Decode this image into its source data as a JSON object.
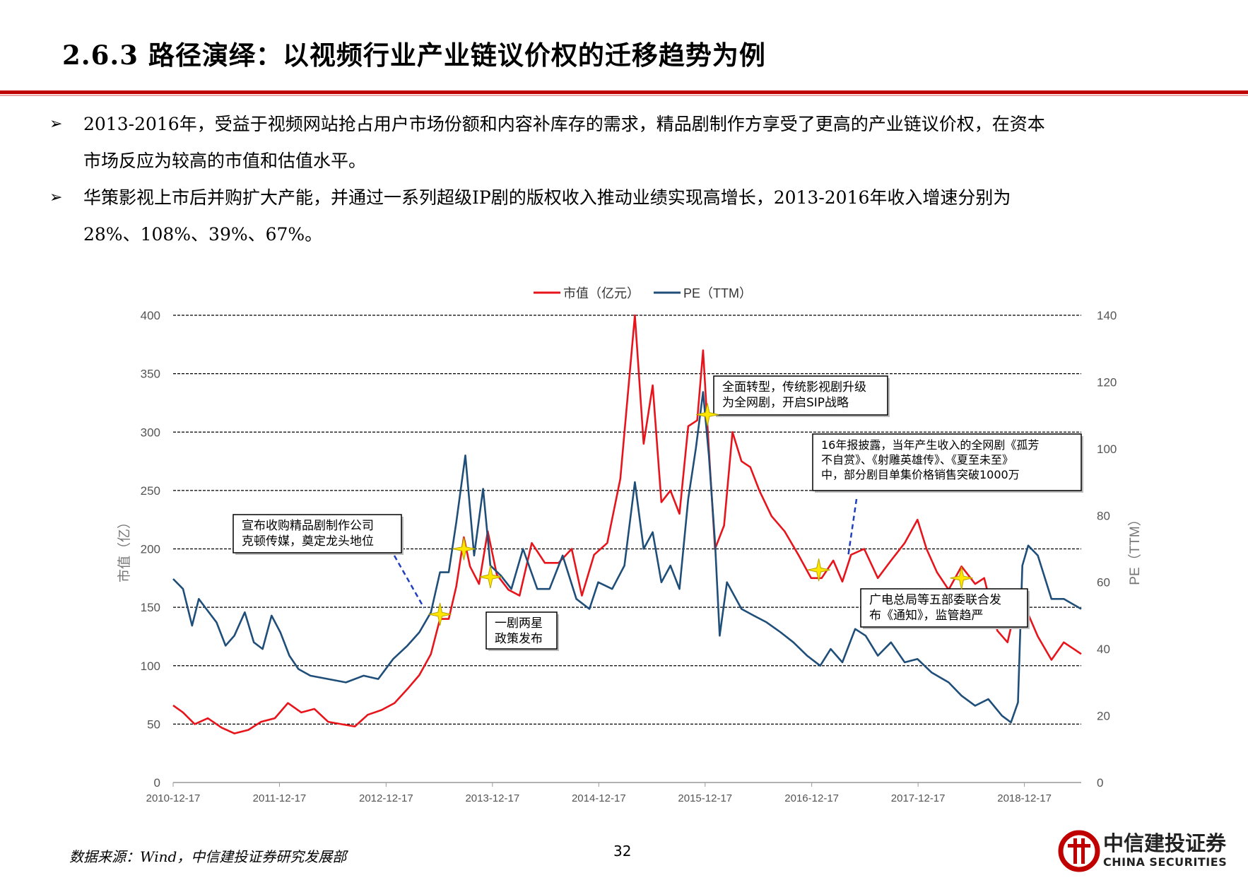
{
  "header": {
    "title": "2.6.3 路径演绎：以视频行业产业链议价权的迁移趋势为例"
  },
  "bullets": [
    {
      "mark": "➢",
      "line1": "2013-2016年，受益于视频网站抢占用户市场份额和内容补库存的需求，精品剧制作方享受了更高的产业链议价权，在资本",
      "line2": "市场反应为较高的市值和估值水平。"
    },
    {
      "mark": "➢",
      "line1": "华策影视上市后并购扩大产能，并通过一系列超级IP剧的版权收入推动业绩实现高增长，2013-2016年收入增速分别为",
      "line2": "28%、108%、39%、67%。"
    }
  ],
  "footer": {
    "source": "数据来源：Wind，中信建投证券研究发展部",
    "page": "32",
    "logo_cn": "中信建投证券",
    "logo_en": "CHINA SECURITIES",
    "brand_color": "#c00000"
  },
  "chart_data": {
    "type": "line",
    "legend_position": "top-center",
    "grid": "horizontal dashed",
    "xlabel": "",
    "ylabel": "市值（亿）",
    "y2label": "PE（TTM）",
    "ylim": [
      0,
      400
    ],
    "y2lim": [
      0,
      140
    ],
    "yticks": [
      "0",
      "50",
      "100",
      "150",
      "200",
      "250",
      "300",
      "350",
      "400"
    ],
    "y2ticks": [
      "0",
      "20",
      "40",
      "60",
      "80",
      "100",
      "120",
      "140"
    ],
    "x_range": [
      "2010-12-17",
      "2019-06-30"
    ],
    "xticks": [
      "2010-12-17",
      "2011-12-17",
      "2012-12-17",
      "2013-12-17",
      "2014-12-17",
      "2015-12-17",
      "2016-12-17",
      "2017-12-17",
      "2018-12-17"
    ],
    "series": [
      {
        "name": "市值（亿元）",
        "axis": "left",
        "color": "#e8141b",
        "points": [
          [
            "2010-12-17",
            66
          ],
          [
            "2011-01-20",
            60
          ],
          [
            "2011-03-01",
            50
          ],
          [
            "2011-04-15",
            55
          ],
          [
            "2011-06-01",
            47
          ],
          [
            "2011-07-15",
            42
          ],
          [
            "2011-09-01",
            45
          ],
          [
            "2011-10-15",
            52
          ],
          [
            "2011-12-01",
            55
          ],
          [
            "2012-01-15",
            68
          ],
          [
            "2012-03-01",
            60
          ],
          [
            "2012-04-15",
            63
          ],
          [
            "2012-06-01",
            52
          ],
          [
            "2012-07-15",
            50
          ],
          [
            "2012-09-01",
            48
          ],
          [
            "2012-10-15",
            58
          ],
          [
            "2012-12-01",
            62
          ],
          [
            "2013-01-15",
            68
          ],
          [
            "2013-02-28",
            80
          ],
          [
            "2013-04-10",
            92
          ],
          [
            "2013-05-20",
            110
          ],
          [
            "2013-06-20",
            140
          ],
          [
            "2013-07-20",
            140
          ],
          [
            "2013-08-15",
            168
          ],
          [
            "2013-09-10",
            210
          ],
          [
            "2013-10-01",
            185
          ],
          [
            "2013-11-01",
            170
          ],
          [
            "2013-12-01",
            215
          ],
          [
            "2014-01-01",
            178
          ],
          [
            "2014-02-10",
            165
          ],
          [
            "2014-03-20",
            160
          ],
          [
            "2014-05-01",
            205
          ],
          [
            "2014-06-15",
            188
          ],
          [
            "2014-08-01",
            188
          ],
          [
            "2014-09-15",
            200
          ],
          [
            "2014-10-20",
            160
          ],
          [
            "2014-12-01",
            195
          ],
          [
            "2015-01-15",
            205
          ],
          [
            "2015-03-01",
            260
          ],
          [
            "2015-04-20",
            400
          ],
          [
            "2015-05-20",
            290
          ],
          [
            "2015-06-20",
            340
          ],
          [
            "2015-07-20",
            240
          ],
          [
            "2015-08-20",
            250
          ],
          [
            "2015-09-20",
            230
          ],
          [
            "2015-10-20",
            305
          ],
          [
            "2015-11-20",
            310
          ],
          [
            "2015-12-10",
            370
          ],
          [
            "2015-12-30",
            285
          ],
          [
            "2016-01-20",
            200
          ],
          [
            "2016-02-20",
            220
          ],
          [
            "2016-03-20",
            300
          ],
          [
            "2016-04-20",
            275
          ],
          [
            "2016-05-20",
            270
          ],
          [
            "2016-06-20",
            250
          ],
          [
            "2016-08-01",
            228
          ],
          [
            "2016-09-15",
            215
          ],
          [
            "2016-11-01",
            195
          ],
          [
            "2016-12-15",
            175
          ],
          [
            "2017-01-20",
            175
          ],
          [
            "2017-03-01",
            190
          ],
          [
            "2017-04-01",
            172
          ],
          [
            "2017-05-01",
            195
          ],
          [
            "2017-06-15",
            200
          ],
          [
            "2017-08-01",
            175
          ],
          [
            "2017-09-15",
            190
          ],
          [
            "2017-11-01",
            205
          ],
          [
            "2017-12-15",
            225
          ],
          [
            "2018-01-15",
            200
          ],
          [
            "2018-02-20",
            180
          ],
          [
            "2018-04-01",
            165
          ],
          [
            "2018-05-15",
            185
          ],
          [
            "2018-07-01",
            170
          ],
          [
            "2018-08-01",
            175
          ],
          [
            "2018-09-15",
            130
          ],
          [
            "2018-10-20",
            120
          ],
          [
            "2018-11-15",
            148
          ],
          [
            "2018-12-20",
            150
          ],
          [
            "2019-02-01",
            125
          ],
          [
            "2019-03-20",
            105
          ],
          [
            "2019-05-01",
            120
          ],
          [
            "2019-06-30",
            110
          ]
        ]
      },
      {
        "name": "PE（TTM）",
        "axis": "right",
        "color": "#1f4e79",
        "points": [
          [
            "2010-12-17",
            61
          ],
          [
            "2011-01-20",
            58
          ],
          [
            "2011-02-20",
            47
          ],
          [
            "2011-03-15",
            55
          ],
          [
            "2011-04-10",
            52
          ],
          [
            "2011-05-15",
            48
          ],
          [
            "2011-06-15",
            41
          ],
          [
            "2011-07-15",
            44
          ],
          [
            "2011-08-20",
            51
          ],
          [
            "2011-09-20",
            42
          ],
          [
            "2011-10-20",
            40
          ],
          [
            "2011-11-20",
            50
          ],
          [
            "2011-12-20",
            45
          ],
          [
            "2012-01-20",
            38
          ],
          [
            "2012-02-20",
            34
          ],
          [
            "2012-04-01",
            32
          ],
          [
            "2012-06-01",
            31
          ],
          [
            "2012-08-01",
            30
          ],
          [
            "2012-10-01",
            32
          ],
          [
            "2012-11-20",
            31
          ],
          [
            "2013-01-10",
            37
          ],
          [
            "2013-02-28",
            41
          ],
          [
            "2013-04-10",
            45
          ],
          [
            "2013-05-20",
            51
          ],
          [
            "2013-06-20",
            63
          ],
          [
            "2013-07-20",
            63
          ],
          [
            "2013-08-15",
            78
          ],
          [
            "2013-09-15",
            98
          ],
          [
            "2013-10-15",
            68
          ],
          [
            "2013-11-15",
            88
          ],
          [
            "2013-12-10",
            65
          ],
          [
            "2014-01-15",
            62
          ],
          [
            "2014-02-20",
            58
          ],
          [
            "2014-04-01",
            70
          ],
          [
            "2014-05-20",
            58
          ],
          [
            "2014-07-01",
            58
          ],
          [
            "2014-08-15",
            68
          ],
          [
            "2014-10-01",
            55
          ],
          [
            "2014-11-15",
            52
          ],
          [
            "2014-12-15",
            60
          ],
          [
            "2015-02-01",
            58
          ],
          [
            "2015-03-15",
            65
          ],
          [
            "2015-04-20",
            90
          ],
          [
            "2015-05-20",
            70
          ],
          [
            "2015-06-20",
            75
          ],
          [
            "2015-07-20",
            60
          ],
          [
            "2015-08-20",
            65
          ],
          [
            "2015-09-20",
            58
          ],
          [
            "2015-10-20",
            85
          ],
          [
            "2015-11-15",
            100
          ],
          [
            "2015-12-10",
            117
          ],
          [
            "2015-12-30",
            98
          ],
          [
            "2016-01-20",
            72
          ],
          [
            "2016-02-05",
            44
          ],
          [
            "2016-03-01",
            60
          ],
          [
            "2016-04-20",
            52
          ],
          [
            "2016-06-01",
            50
          ],
          [
            "2016-07-15",
            48
          ],
          [
            "2016-09-01",
            45
          ],
          [
            "2016-10-15",
            42
          ],
          [
            "2016-12-01",
            38
          ],
          [
            "2017-01-15",
            35
          ],
          [
            "2017-02-20",
            40
          ],
          [
            "2017-04-01",
            36
          ],
          [
            "2017-05-15",
            46
          ],
          [
            "2017-06-20",
            44
          ],
          [
            "2017-08-01",
            38
          ],
          [
            "2017-09-15",
            42
          ],
          [
            "2017-11-01",
            36
          ],
          [
            "2017-12-15",
            37
          ],
          [
            "2018-02-01",
            33
          ],
          [
            "2018-04-01",
            30
          ],
          [
            "2018-05-15",
            26
          ],
          [
            "2018-07-01",
            23
          ],
          [
            "2018-08-15",
            25
          ],
          [
            "2018-10-01",
            20
          ],
          [
            "2018-11-01",
            18
          ],
          [
            "2018-11-25",
            24
          ],
          [
            "2018-12-10",
            65
          ],
          [
            "2018-12-30",
            71
          ],
          [
            "2019-02-01",
            68
          ],
          [
            "2019-03-20",
            55
          ],
          [
            "2019-05-01",
            55
          ],
          [
            "2019-06-30",
            52
          ]
        ]
      }
    ],
    "markers": [
      {
        "date": "2013-06-20",
        "value": 144
      },
      {
        "date": "2013-09-10",
        "value": 200
      },
      {
        "date": "2013-12-10",
        "value": 176
      },
      {
        "date": "2015-12-25",
        "value": 315
      },
      {
        "date": "2017-01-10",
        "value": 182
      },
      {
        "date": "2018-05-15",
        "value": 175
      }
    ],
    "annotations": [
      {
        "id": "ann1",
        "lines": [
          "宣布收购精品剧制作公司",
          "克顿传媒，奠定龙头地位"
        ],
        "pointer": "dashed"
      },
      {
        "id": "ann2",
        "lines": [
          "一剧两星",
          "政策发布"
        ],
        "pointer": "none"
      },
      {
        "id": "ann3",
        "lines": [
          "全面转型，传统影视剧升级",
          "为全网剧，开启SIP战略"
        ],
        "pointer": "none"
      },
      {
        "id": "ann4",
        "lines": [
          "16年报披露，当年产生收入的全网剧《孤芳",
          "不自赏》、《射雕英雄传》、《夏至未至》",
          "中，部分剧目单集价格销售突破1000万"
        ],
        "pointer": "dashed"
      },
      {
        "id": "ann5",
        "lines": [
          "广电总局等五部委联合发",
          "布《通知》，监管趋严"
        ],
        "pointer": "none"
      }
    ]
  }
}
